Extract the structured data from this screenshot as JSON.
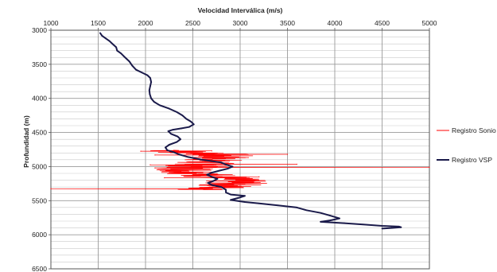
{
  "chart_data": {
    "type": "line",
    "title": "",
    "xlabel": "Velocidad Interválica (m/s)",
    "ylabel": "Profundidad (m)",
    "x_axis_position": "top",
    "y_axis_inverted": true,
    "xlim": [
      1000,
      5000
    ],
    "ylim": [
      3000,
      6500
    ],
    "xticks": [
      1000,
      1500,
      2000,
      2500,
      3000,
      3500,
      4000,
      4500,
      5000
    ],
    "yticks": [
      3000,
      3500,
      4000,
      4500,
      5000,
      5500,
      6000,
      6500
    ],
    "grid": {
      "vertical_major_step": 500,
      "horizontal_minor_step": 100
    },
    "legend": {
      "position": "right"
    },
    "series": [
      {
        "name": "Registro Sonio",
        "color": "#ff0000",
        "depth_range": [
          4760,
          5340
        ],
        "baseline_velocity": 2550,
        "spike_points": [
          [
            2700,
            4770
          ],
          [
            1950,
            4775
          ],
          [
            3500,
            4820
          ],
          [
            2100,
            4830
          ],
          [
            3600,
            4965
          ],
          [
            2050,
            4975
          ],
          [
            5000,
            5010
          ],
          [
            2100,
            5020
          ],
          [
            3200,
            5150
          ],
          [
            2200,
            5165
          ],
          [
            1000,
            5325
          ],
          [
            2800,
            5330
          ]
        ]
      },
      {
        "name": "Registro VSP",
        "color": "#1a1a4a",
        "points": [
          [
            1520,
            3040
          ],
          [
            1540,
            3080
          ],
          [
            1580,
            3120
          ],
          [
            1620,
            3160
          ],
          [
            1650,
            3200
          ],
          [
            1690,
            3250
          ],
          [
            1700,
            3300
          ],
          [
            1740,
            3340
          ],
          [
            1770,
            3380
          ],
          [
            1800,
            3420
          ],
          [
            1830,
            3460
          ],
          [
            1860,
            3520
          ],
          [
            1900,
            3580
          ],
          [
            1960,
            3620
          ],
          [
            2020,
            3660
          ],
          [
            2050,
            3700
          ],
          [
            2060,
            3760
          ],
          [
            2050,
            3820
          ],
          [
            2040,
            3880
          ],
          [
            2045,
            3940
          ],
          [
            2060,
            4000
          ],
          [
            2090,
            4050
          ],
          [
            2150,
            4100
          ],
          [
            2250,
            4150
          ],
          [
            2330,
            4200
          ],
          [
            2390,
            4250
          ],
          [
            2430,
            4300
          ],
          [
            2480,
            4340
          ],
          [
            2510,
            4380
          ],
          [
            2460,
            4420
          ],
          [
            2380,
            4440
          ],
          [
            2290,
            4460
          ],
          [
            2240,
            4480
          ],
          [
            2270,
            4520
          ],
          [
            2340,
            4560
          ],
          [
            2370,
            4600
          ],
          [
            2330,
            4640
          ],
          [
            2250,
            4680
          ],
          [
            2210,
            4720
          ],
          [
            2230,
            4760
          ],
          [
            2300,
            4790
          ],
          [
            2350,
            4820
          ],
          [
            2450,
            4860
          ],
          [
            2600,
            4900
          ],
          [
            2800,
            4940
          ],
          [
            2850,
            4970
          ],
          [
            2920,
            5000
          ],
          [
            2870,
            5030
          ],
          [
            2780,
            5060
          ],
          [
            2700,
            5090
          ],
          [
            2650,
            5120
          ],
          [
            2700,
            5150
          ],
          [
            2760,
            5180
          ],
          [
            2720,
            5210
          ],
          [
            2660,
            5240
          ],
          [
            2700,
            5270
          ],
          [
            2800,
            5300
          ],
          [
            2850,
            5340
          ],
          [
            2850,
            5380
          ],
          [
            2900,
            5410
          ],
          [
            3050,
            5430
          ],
          [
            2980,
            5460
          ],
          [
            2900,
            5490
          ],
          [
            3050,
            5520
          ],
          [
            3200,
            5540
          ],
          [
            3400,
            5570
          ],
          [
            3600,
            5600
          ],
          [
            3700,
            5640
          ],
          [
            3850,
            5680
          ],
          [
            3950,
            5720
          ],
          [
            4050,
            5760
          ],
          [
            3950,
            5790
          ],
          [
            3850,
            5810
          ],
          [
            4100,
            5830
          ],
          [
            4300,
            5850
          ],
          [
            4500,
            5870
          ],
          [
            4680,
            5880
          ],
          [
            4700,
            5890
          ],
          [
            4600,
            5900
          ],
          [
            4500,
            5910
          ]
        ]
      }
    ]
  }
}
